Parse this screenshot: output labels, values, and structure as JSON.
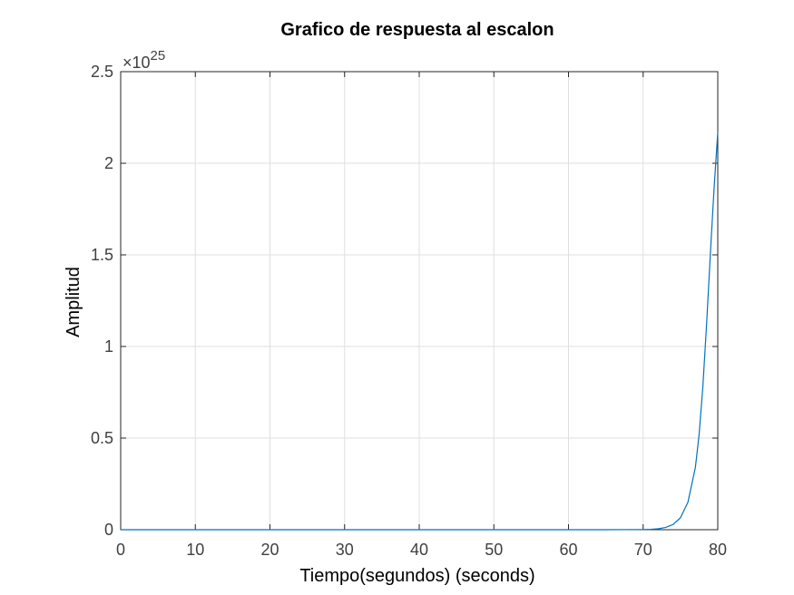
{
  "chart_data": {
    "type": "line",
    "title": "Grafico de respuesta al escalon",
    "xlabel": "Tiempo(segundos) (seconds)",
    "ylabel": "Amplitud",
    "xlim": [
      0,
      80
    ],
    "ylim": [
      0,
      2.5
    ],
    "xticks": [
      "0",
      "10",
      "20",
      "30",
      "40",
      "50",
      "60",
      "70",
      "80"
    ],
    "yticks": [
      "0",
      "0.5",
      "1",
      "1.5",
      "2",
      "2.5"
    ],
    "y_multiplier": {
      "base": "×10",
      "exponent": "25"
    },
    "grid": true,
    "line_color": "#0072BD",
    "series": [
      {
        "x": [
          0,
          10,
          20,
          30,
          40,
          50,
          60,
          65,
          70,
          71,
          72,
          73,
          74,
          75,
          76,
          77,
          77.5,
          78,
          78.5,
          79,
          79.5,
          80
        ],
        "y": [
          0,
          0,
          0,
          0,
          0,
          0,
          0,
          0,
          0.001,
          0.002,
          0.005,
          0.012,
          0.028,
          0.065,
          0.15,
          0.34,
          0.52,
          0.78,
          1.12,
          1.5,
          1.86,
          2.17
        ]
      }
    ]
  }
}
